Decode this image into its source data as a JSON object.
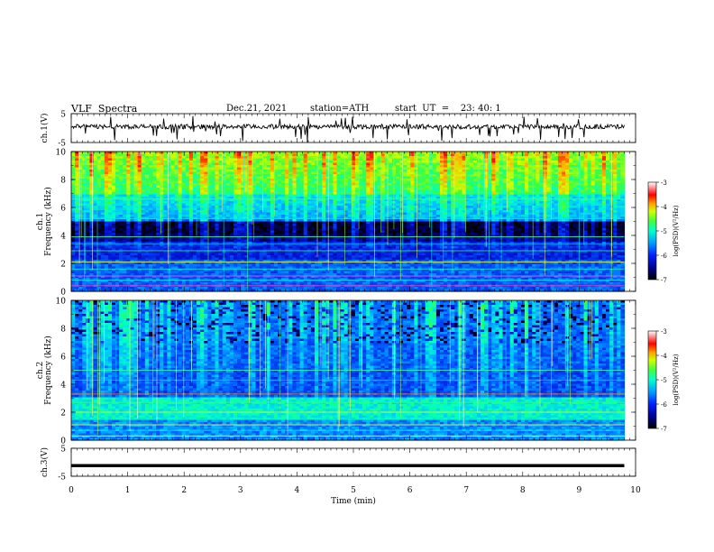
{
  "header": {
    "title": "VLF  Spectra",
    "date": "Dec.21, 2021",
    "station": "station=ATH",
    "start_ut": "start  UT  =    23: 40: 1"
  },
  "chart_data": [
    {
      "type": "line",
      "panel": "ch1-waveform",
      "ylabel": "ch.1(V)",
      "ylim": [
        -5,
        5
      ],
      "yticks": [
        "5",
        "-5"
      ],
      "x_range_min": [
        0,
        9.8
      ],
      "baseline_v": 0.5,
      "description": "continuous noisy waveform near 0 V with short negative spikes"
    },
    {
      "type": "heatmap",
      "panel": "ch1-spectrogram",
      "ylabel": "ch.1\nFrequency (kHz)",
      "ylabel_lines": [
        "ch.1",
        "Frequency  (kHz)"
      ],
      "ylim": [
        0,
        10
      ],
      "yticks": [
        "0",
        "2",
        "4",
        "6",
        "8",
        "10"
      ],
      "x_range_min": [
        0,
        9.8
      ],
      "colorbar": {
        "label": "log(PSD)(V²/Hz)",
        "range": [
          -7,
          -3
        ],
        "ticks": [
          "-3",
          "-4",
          "-5",
          "-6",
          "-7"
        ]
      }
    },
    {
      "type": "heatmap",
      "panel": "ch2-spectrogram",
      "ylabel_lines": [
        "ch.2",
        "Frequency  (kHz)"
      ],
      "ylim": [
        0,
        10
      ],
      "yticks": [
        "0",
        "2",
        "4",
        "6",
        "8",
        "10"
      ],
      "x_range_min": [
        0,
        9.8
      ],
      "colorbar": {
        "label": "log(PSD)(V²/Hz)",
        "range": [
          -7,
          -3
        ],
        "ticks": [
          "-3",
          "-4",
          "-5",
          "-6",
          "-7"
        ]
      }
    },
    {
      "type": "line",
      "panel": "ch3-waveform",
      "ylabel": "ch.3(V)",
      "ylim": [
        -5,
        5
      ],
      "yticks": [
        "5",
        "-5"
      ],
      "x_range_min": [
        0,
        9.8
      ],
      "baseline_v": -1.2,
      "description": "flat thick line near -1 V"
    }
  ],
  "x_axis": {
    "label": "Time  (min)",
    "ticks": [
      "0",
      "1",
      "2",
      "3",
      "4",
      "5",
      "6",
      "7",
      "8",
      "9",
      "10"
    ],
    "range": [
      0,
      10
    ]
  },
  "colors": {
    "cmap": [
      "#000000",
      "#000060",
      "#0000c8",
      "#0050ff",
      "#00c8ff",
      "#30ff90",
      "#c8ff00",
      "#ffb000",
      "#ff0000",
      "#ffffff"
    ]
  }
}
